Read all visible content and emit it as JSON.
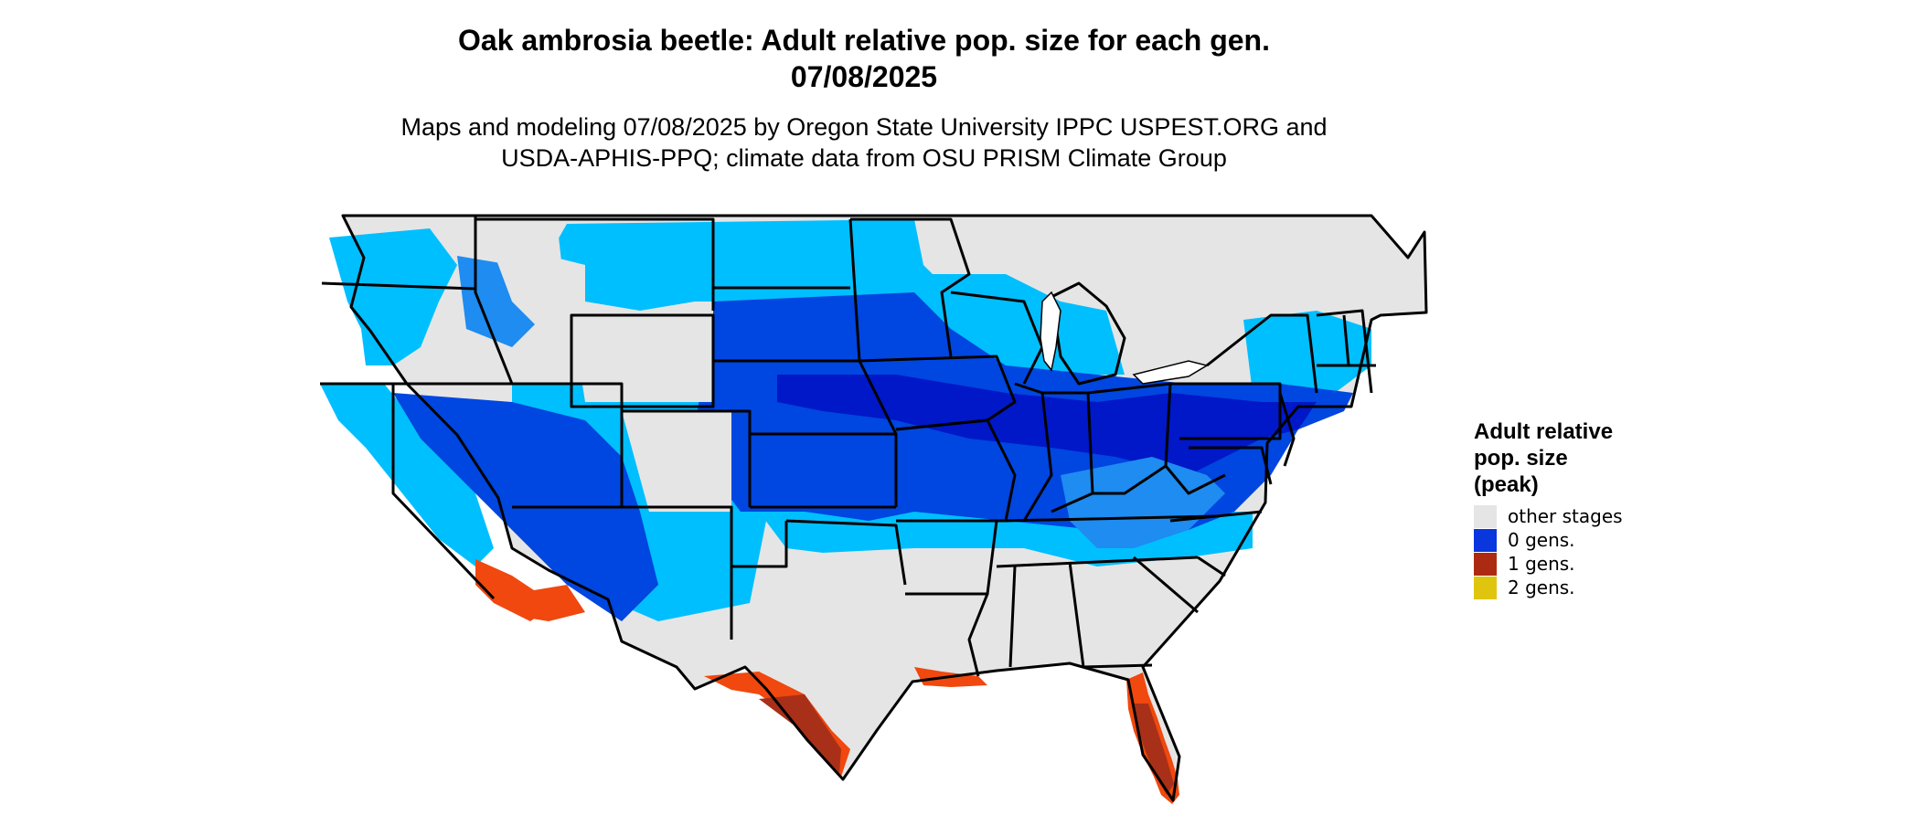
{
  "title": {
    "line1": "Oak ambrosia beetle: Adult relative pop. size for each gen.",
    "line2": "07/08/2025"
  },
  "subtitle": {
    "line1": "Maps and modeling 07/08/2025 by Oregon State University IPPC USPEST.ORG and",
    "line2": "USDA-APHIS-PPQ; climate data from OSU PRISM Climate Group"
  },
  "legend": {
    "title_lines": [
      "Adult relative",
      "pop. size",
      "(peak)"
    ],
    "items": [
      {
        "label": "other stages",
        "color": "#e5e5e5",
        "icon": "other-stages-swatch"
      },
      {
        "label": "0 gens.",
        "color": "#0a36dd",
        "icon": "zero-gens-swatch"
      },
      {
        "label": "1 gens.",
        "color": "#ad2a12",
        "icon": "one-gens-swatch"
      },
      {
        "label": "2 gens.",
        "color": "#e0c50f",
        "icon": "two-gens-swatch"
      }
    ]
  },
  "map_colors": {
    "other": "#e5e5e5",
    "blue_light": "#00bfff",
    "blue_mid": "#1e8cf0",
    "blue_deep": "#0046e0",
    "blue_dark": "#0018c8",
    "red_orange": "#f0480e",
    "red_dark": "#a83018",
    "border": "#000000"
  }
}
